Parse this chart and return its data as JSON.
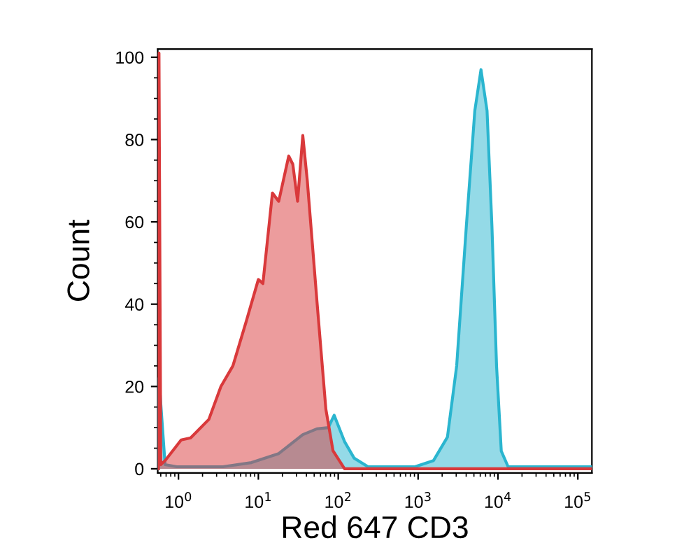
{
  "chart_data": {
    "type": "area",
    "xlabel": "Red 647 CD3",
    "ylabel": "Count",
    "log": "x",
    "xlim": [
      0.55,
      150000
    ],
    "ylim": [
      -1,
      102
    ],
    "xticks": [
      {
        "value": 1,
        "label": "10$^{0}$"
      },
      {
        "value": 10,
        "label": "10$^{1}$"
      },
      {
        "value": 100,
        "label": "10$^{2}$"
      },
      {
        "value": 1000,
        "label": "10$^{3}$"
      },
      {
        "value": 10000,
        "label": "10$^{4}$"
      },
      {
        "value": 100000,
        "label": "10$^{5}$"
      }
    ],
    "yticks": [
      0,
      20,
      40,
      60,
      80,
      100
    ],
    "grid": false,
    "series": [
      {
        "color": "#2ab5cf",
        "x": [
          0.56,
          0.57,
          0.68,
          0.95,
          3.6,
          8.2,
          18,
          36,
          54,
          75,
          89,
          120,
          158,
          236,
          914,
          1560,
          2330,
          3040,
          4020,
          5130,
          6130,
          7300,
          8400,
          9600,
          11000,
          13400,
          150000
        ],
        "values": [
          0,
          22,
          1,
          0.5,
          0.5,
          1.5,
          3.7,
          8.3,
          9.7,
          10,
          13,
          6.6,
          2.6,
          0.5,
          0.5,
          2,
          7.7,
          25,
          59,
          87,
          97,
          87,
          59,
          25,
          4.3,
          0.5,
          0.5
        ]
      },
      {
        "color": "#d9393b",
        "x": [
          0.56,
          0.57,
          0.6,
          0.68,
          1.08,
          1.42,
          2.4,
          3.4,
          4.8,
          7.1,
          10,
          11.4,
          15,
          18,
          24,
          27,
          31,
          36,
          41,
          54,
          70,
          86,
          120,
          150000
        ],
        "values": [
          0,
          101,
          1,
          2,
          7,
          7.5,
          12,
          20,
          25,
          36,
          46,
          45,
          67,
          65,
          76,
          74,
          65,
          81,
          70,
          41,
          14.5,
          4.4,
          0,
          0
        ]
      }
    ]
  }
}
